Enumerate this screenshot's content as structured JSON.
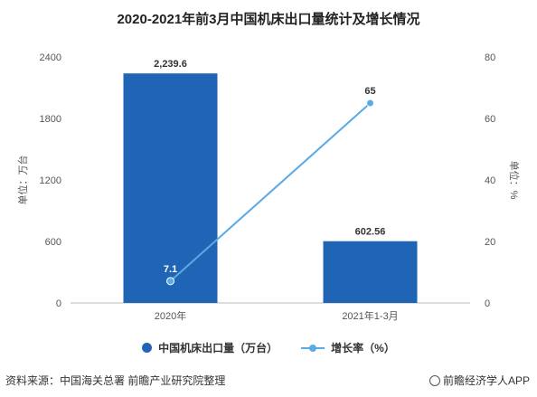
{
  "title": "2020-2021年前3月中国机床出口量统计及增长情况",
  "colors": {
    "bar": "#2065b5",
    "line": "#5aaae6"
  },
  "chart_data": {
    "type": "bar",
    "categories": [
      "2020年",
      "2021年1-3月"
    ],
    "series": [
      {
        "name": "中国机床出口量（万台）",
        "type": "bar",
        "axis": "left",
        "values": [
          2239.6,
          602.56
        ],
        "labels": [
          "2,239.6",
          "602.56"
        ]
      },
      {
        "name": "增长率（%）",
        "type": "line",
        "axis": "right",
        "values": [
          7.1,
          65
        ],
        "labels": [
          "7.1",
          "65"
        ]
      }
    ],
    "ylabel_left": "单位：万台",
    "ylabel_right": "单位：%",
    "ylim_left": [
      0,
      2400
    ],
    "ylim_right": [
      0,
      80
    ],
    "yticks_left": [
      0,
      600,
      1200,
      1800,
      2400
    ],
    "yticks_right": [
      0,
      20,
      40,
      60,
      80
    ],
    "legend_position": "bottom"
  },
  "footer": {
    "source": "资料来源：中国海关总署 前瞻产业研究院整理",
    "brand": "前瞻经济学人APP",
    "brand_icon": "qianzhan-logo-icon"
  }
}
